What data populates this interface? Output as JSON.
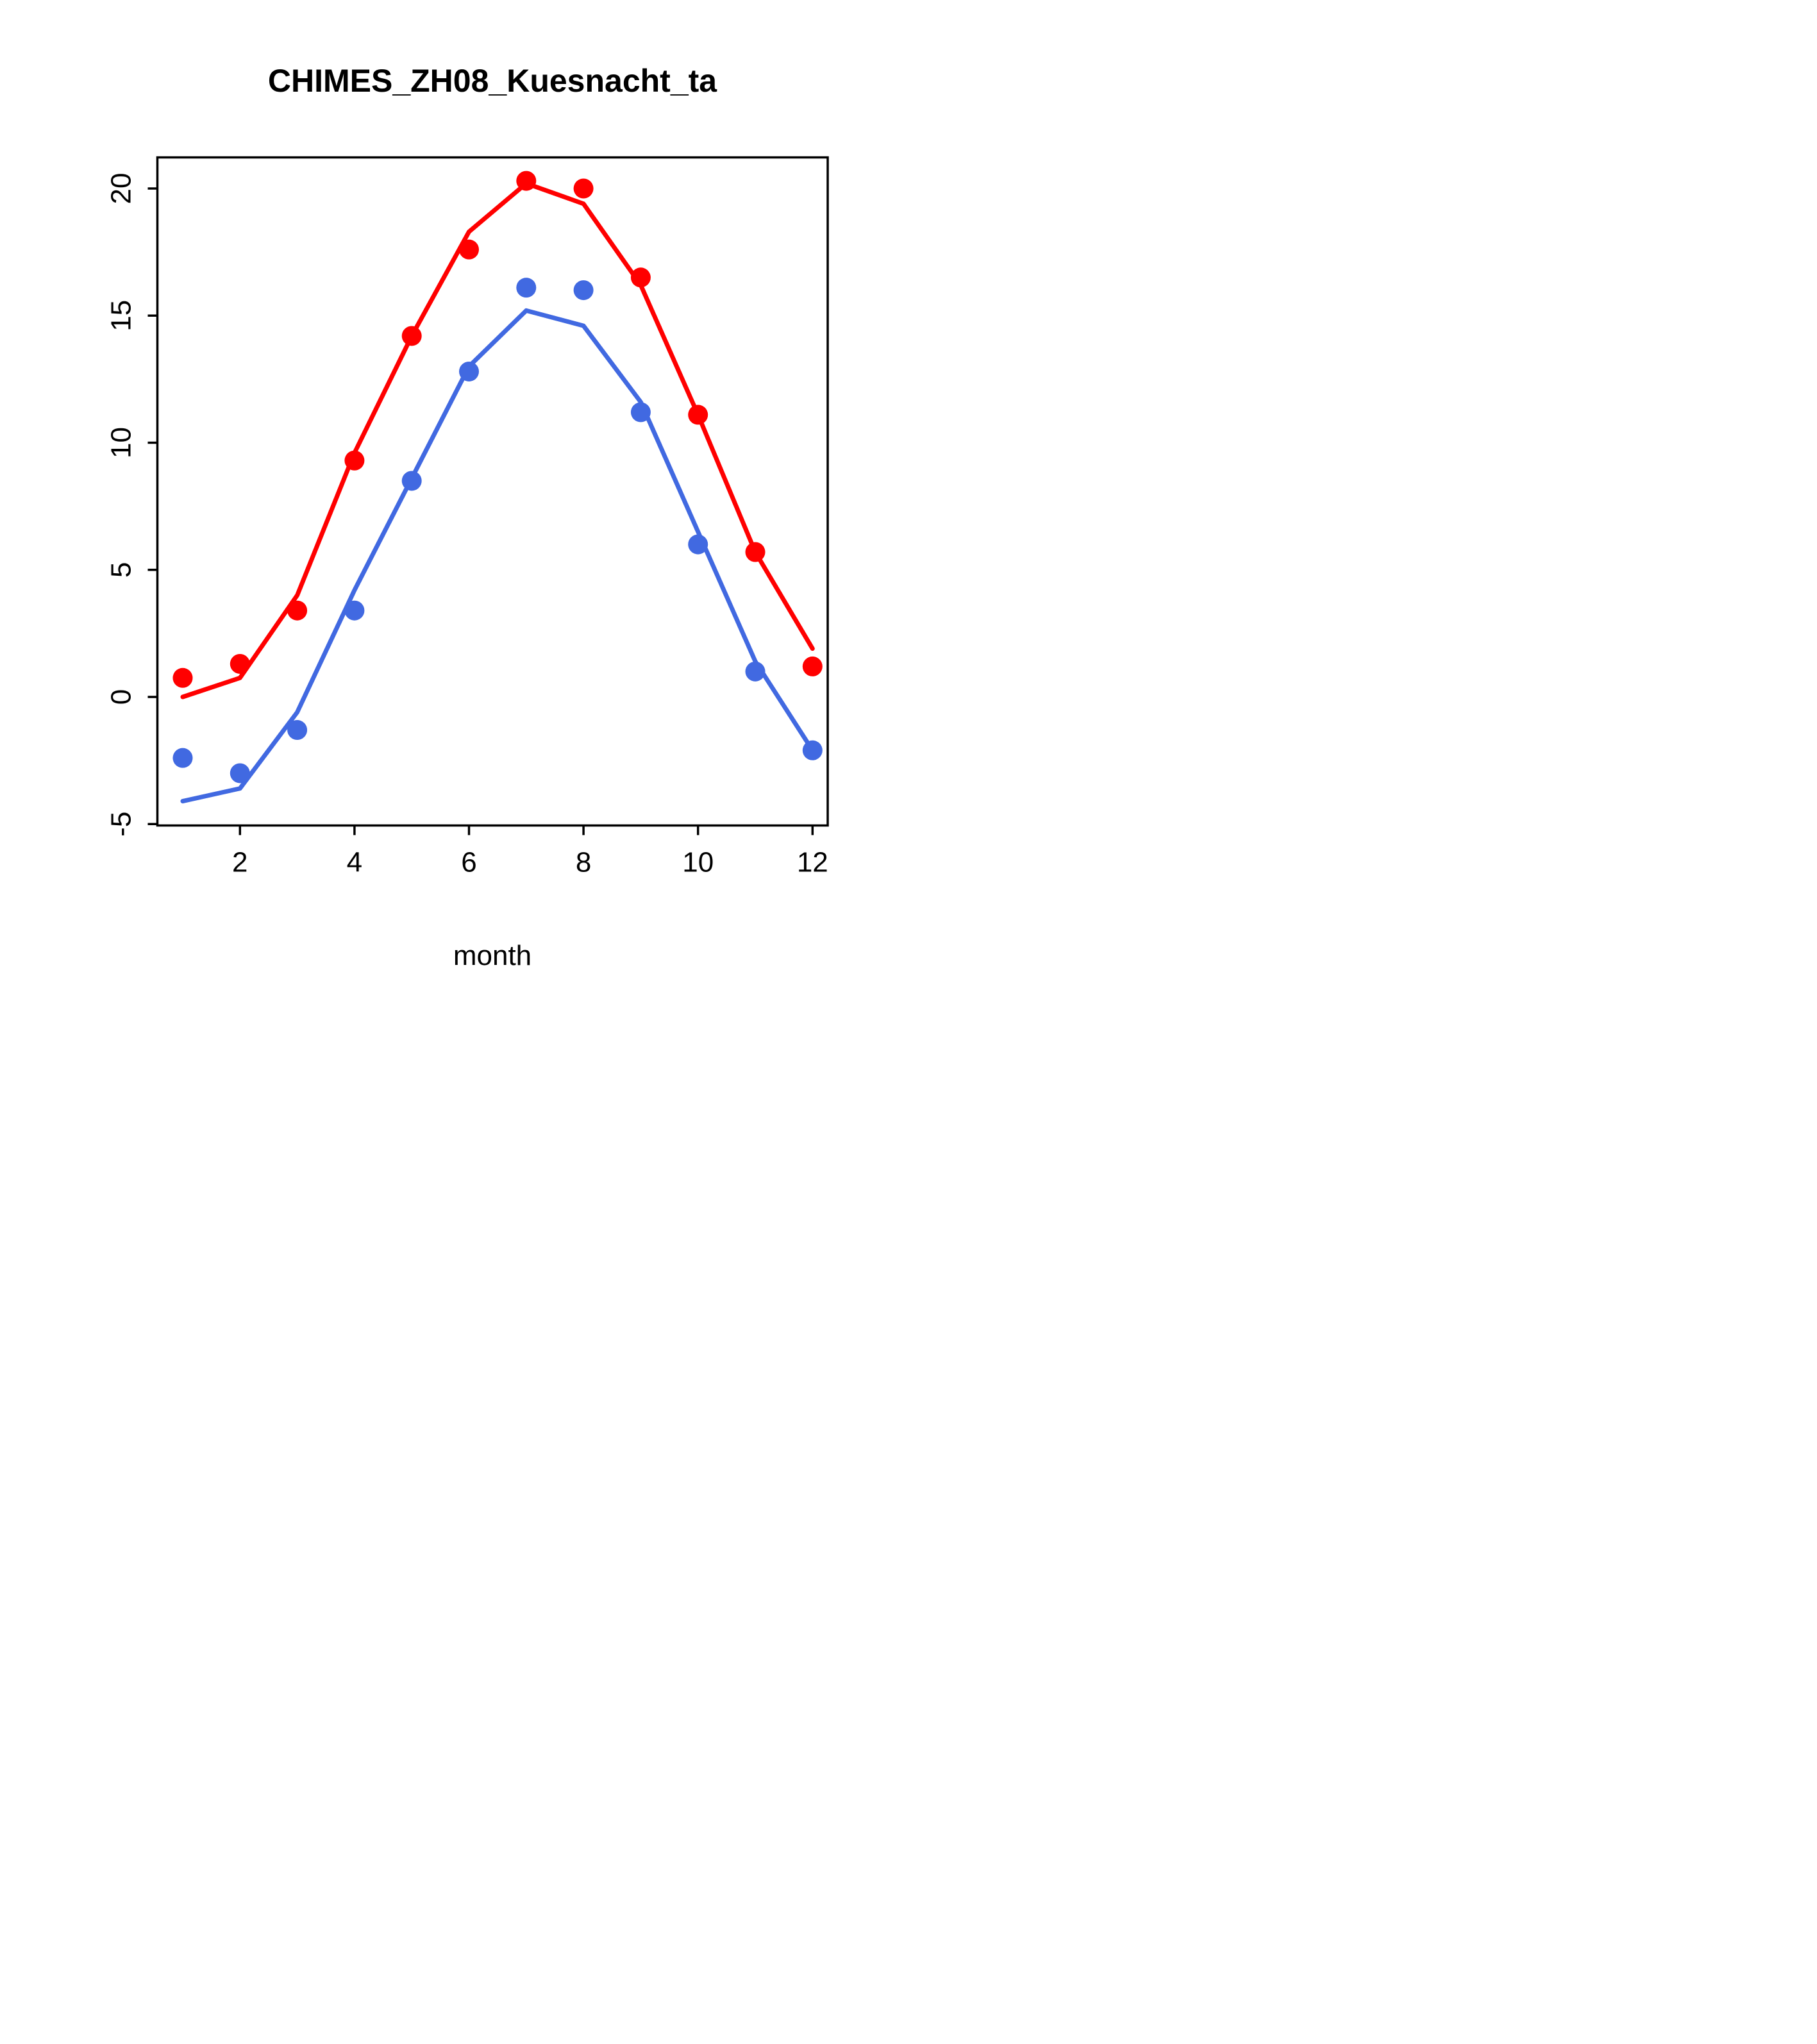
{
  "chart_data": {
    "type": "line+scatter",
    "title": "CHIMES_ZH08_Kuesnacht_ta",
    "xlabel": "month",
    "ylabel": "",
    "x_ticks": [
      2,
      4,
      6,
      8,
      10,
      12
    ],
    "y_ticks": [
      -5,
      0,
      5,
      10,
      15,
      20
    ],
    "xlim": [
      0.56,
      12.44
    ],
    "ylim": [
      -5.1,
      21.2
    ],
    "grid": false,
    "legend": "none",
    "months": [
      1,
      2,
      3,
      4,
      5,
      6,
      7,
      8,
      9,
      10,
      11,
      12
    ],
    "series": [
      {
        "name": "red-line",
        "kind": "line",
        "color": "#FF0000",
        "values": [
          0.0,
          0.75,
          4.0,
          9.6,
          14.2,
          18.3,
          20.2,
          19.4,
          16.2,
          11.1,
          5.7,
          1.9
        ]
      },
      {
        "name": "red-points",
        "kind": "points",
        "color": "#FF0000",
        "values": [
          0.75,
          1.3,
          3.4,
          9.3,
          14.2,
          17.6,
          20.3,
          20.0,
          16.5,
          11.1,
          5.7,
          1.2
        ]
      },
      {
        "name": "blue-line",
        "kind": "line",
        "color": "#4169E1",
        "values": [
          -4.1,
          -3.6,
          -0.6,
          4.2,
          8.6,
          13.0,
          15.2,
          14.6,
          11.6,
          6.5,
          1.4,
          -2.1
        ]
      },
      {
        "name": "blue-points",
        "kind": "points",
        "color": "#4169E1",
        "values": [
          -2.4,
          -3.0,
          -1.3,
          3.4,
          8.5,
          12.8,
          16.1,
          16.0,
          11.2,
          6.0,
          1.0,
          -2.1
        ]
      }
    ],
    "colors": {
      "red_series": "#FF0000",
      "blue_series": "#4169E1",
      "axis": "#000000",
      "background": "#FFFFFF"
    }
  }
}
